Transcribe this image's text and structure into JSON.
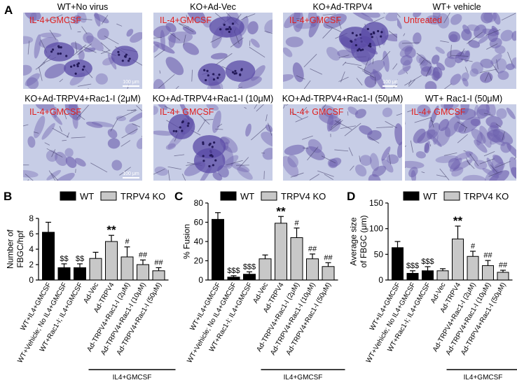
{
  "panel_A": {
    "label": "A",
    "images": [
      {
        "title": "WT+No virus",
        "overlay": "IL-4+GMCSF",
        "scale": "100 μm"
      },
      {
        "title": "KO+Ad-Vec",
        "overlay": "IL-4+GMCSF",
        "scale": ""
      },
      {
        "title": "KO+Ad-TRPV4",
        "overlay": "IL-4+GMCSF",
        "scale": "100 μm"
      },
      {
        "title": "WT+ vehicle",
        "overlay": "Untreated",
        "scale": ""
      },
      {
        "title": "KO+Ad-TRPV4+Rac1-I (2μM)",
        "overlay": "IL-4+GMCSF",
        "scale": "100 μm"
      },
      {
        "title": "KO+Ad-TRPV4+Rac1-I (10μM)",
        "overlay": "IL-4+ GMCSF",
        "scale": ""
      },
      {
        "title": "KO+Ad-TRPV4+Rac1-I (50μM)",
        "overlay": "IL-4+ GMCSF",
        "scale": ""
      },
      {
        "title": "WT+ Rac1-I (50μM)",
        "overlay": "IL-4+ GMCSF",
        "scale": ""
      }
    ]
  },
  "colors": {
    "wt": "#000000",
    "ko": "#c8c8c8",
    "overlay_text": "#e02020",
    "cell_bg": "#c7cde6",
    "cell_stain": "#6d5fae"
  },
  "chart_data": [
    {
      "panel": "B",
      "type": "bar",
      "ylabel": "Number of FBGC/hpf",
      "ylabel_lines": [
        "Number of",
        "FBGC/hpf"
      ],
      "ylim": [
        0,
        8
      ],
      "yticks": [
        "0",
        "2",
        "4",
        "6",
        "8"
      ],
      "legend": [
        {
          "name": "WT",
          "color": "#000000"
        },
        {
          "name": "TRPV4 KO",
          "color": "#c8c8c8"
        }
      ],
      "categories": [
        "WT+IL4+GMCSF",
        "WT+Vehicle; No IL4+GMCSF",
        "WT+Rac1-I; IL4+GMCSF",
        "Ad-Vec",
        "Ad-TRPV4",
        "Ad-TRPV4+Rac1-I (2μM)",
        "Ad-TRPV4+Rac1-I (10μM)",
        "Ad-TRPV4+Rac1-I (50μM)"
      ],
      "groups": [
        "WT",
        "WT",
        "WT",
        "TRPV4 KO",
        "TRPV4 KO",
        "TRPV4 KO",
        "TRPV4 KO",
        "TRPV4 KO"
      ],
      "values": [
        6.2,
        1.6,
        1.6,
        2.8,
        5.0,
        3.0,
        2.0,
        1.2
      ],
      "errors": [
        1.3,
        0.5,
        0.5,
        0.8,
        0.8,
        1.3,
        0.6,
        0.4
      ],
      "annotations": [
        "",
        "$$",
        "$$",
        "",
        "**",
        "#",
        "##",
        "##"
      ],
      "bracket_label": "IL4+GMCSF"
    },
    {
      "panel": "C",
      "type": "bar",
      "ylabel": "% Fusion",
      "ylabel_lines": [
        "% Fusion"
      ],
      "ylim": [
        0,
        80
      ],
      "yticks": [
        "0",
        "20",
        "40",
        "60",
        "80"
      ],
      "legend": [
        {
          "name": "WT",
          "color": "#000000"
        },
        {
          "name": "TRPV4 KO",
          "color": "#c8c8c8"
        }
      ],
      "categories": [
        "WT+IL4+GMCSF",
        "WT+Vehicle; No IL4+GMCSF",
        "WT+Rac1-I; IL4+GMCSF",
        "Ad-Vec",
        "Ad-TRPV4",
        "Ad-TRPV4+Rac1-I (2μM)",
        "Ad-TRPV4+Rac1-I (10μM)",
        "Ad-TRPV4+Rac1-I (50μM)"
      ],
      "groups": [
        "WT",
        "WT",
        "WT",
        "TRPV4 KO",
        "TRPV4 KO",
        "TRPV4 KO",
        "TRPV4 KO",
        "TRPV4 KO"
      ],
      "values": [
        63,
        3,
        6,
        22,
        59,
        44,
        22,
        14
      ],
      "errors": [
        7,
        1.5,
        2.5,
        4,
        7,
        10,
        5,
        4
      ],
      "annotations": [
        "",
        "$$$",
        "$$$",
        "",
        "**",
        "#",
        "##",
        "##"
      ],
      "bracket_label": "IL4+GMCSF"
    },
    {
      "panel": "D",
      "type": "bar",
      "ylabel": "Average size of FBGC (μm)",
      "ylabel_lines": [
        "Average size",
        "of FBGC (μm)"
      ],
      "ylim": [
        0,
        150
      ],
      "yticks": [
        "0",
        "50",
        "100",
        "150"
      ],
      "legend": [
        {
          "name": "WT",
          "color": "#000000"
        },
        {
          "name": "TRPV4 KO",
          "color": "#c8c8c8"
        }
      ],
      "categories": [
        "WT+IL4+GMCSF",
        "WT+Vehicle; No IL4+GMCSF",
        "WT+Rac1-I; IL4+GMCSF",
        "Ad-Vec",
        "Ad-TRPV4",
        "Ad-TRPV4+Rac1-I (2μM)",
        "Ad-TRPV4+Rac1-I (10μM)",
        "Ad-TRPV4+Rac1-I (50μM)"
      ],
      "groups": [
        "WT",
        "WT",
        "WT",
        "TRPV4 KO",
        "TRPV4 KO",
        "TRPV4 KO",
        "TRPV4 KO",
        "TRPV4 KO"
      ],
      "values": [
        63,
        13,
        18,
        18,
        80,
        46,
        28,
        15
      ],
      "errors": [
        12,
        5,
        8,
        4,
        25,
        10,
        10,
        4
      ],
      "annotations": [
        "",
        "$$$",
        "$$$",
        "",
        "**",
        "#",
        "##",
        "##"
      ],
      "bracket_label": "IL4+GMCSF"
    }
  ]
}
